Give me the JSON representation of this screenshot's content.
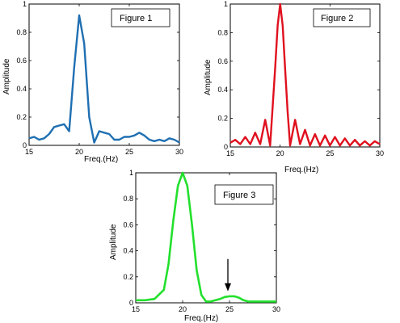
{
  "chart_data": [
    {
      "type": "line",
      "title": "",
      "annotation": "Figure 1",
      "xlabel": "Freq.(Hz)",
      "ylabel": "Amplitude",
      "xlim": [
        15,
        30
      ],
      "ylim": [
        0,
        1
      ],
      "xticks": [
        "15",
        "20",
        "25",
        "30"
      ],
      "yticks": [
        "0",
        "0.2",
        "0.4",
        "0.6",
        "0.8",
        "1"
      ],
      "color": "#1f6fb2",
      "series": [
        {
          "x": [
            15,
            15.5,
            16,
            16.5,
            17,
            17.5,
            18,
            18.5,
            19,
            19.5,
            20,
            20.5,
            21,
            21.5,
            22,
            22.5,
            23,
            23.5,
            24,
            24.5,
            25,
            25.5,
            26,
            26.5,
            27,
            27.5,
            28,
            28.5,
            29,
            29.5,
            30
          ],
          "y": [
            0.05,
            0.06,
            0.04,
            0.05,
            0.08,
            0.13,
            0.14,
            0.15,
            0.1,
            0.55,
            0.92,
            0.72,
            0.2,
            0.02,
            0.1,
            0.09,
            0.08,
            0.04,
            0.04,
            0.06,
            0.06,
            0.07,
            0.09,
            0.07,
            0.04,
            0.03,
            0.04,
            0.03,
            0.05,
            0.04,
            0.02
          ]
        }
      ]
    },
    {
      "type": "line",
      "title": "",
      "annotation": "Figure 2",
      "xlabel": "Freq.(Hz)",
      "ylabel": "Amplitude",
      "xlim": [
        15,
        30
      ],
      "ylim": [
        0,
        1
      ],
      "xticks": [
        "15",
        "20",
        "25",
        "30"
      ],
      "yticks": [
        "0",
        "0.2",
        "0.4",
        "0.6",
        "0.8",
        "1"
      ],
      "color": "#e0101e",
      "series": [
        {
          "x": [
            15,
            15.5,
            16,
            16.5,
            17,
            17.5,
            18,
            18.5,
            19,
            19.5,
            19.75,
            20,
            20.25,
            20.5,
            20.75,
            21,
            21.5,
            22,
            22.5,
            23,
            23.5,
            24,
            24.5,
            25,
            25.5,
            26,
            26.5,
            27,
            27.5,
            28,
            28.5,
            29,
            29.5,
            30
          ],
          "y": [
            0.03,
            0.05,
            0.02,
            0.07,
            0.02,
            0.1,
            0.02,
            0.19,
            0.01,
            0.55,
            0.85,
            1.0,
            0.85,
            0.55,
            0.25,
            0.01,
            0.19,
            0.02,
            0.12,
            0.01,
            0.09,
            0.01,
            0.08,
            0.01,
            0.07,
            0.01,
            0.06,
            0.01,
            0.05,
            0.01,
            0.04,
            0.01,
            0.04,
            0.02
          ]
        }
      ]
    },
    {
      "type": "line",
      "title": "",
      "annotation": "Figure 3",
      "xlabel": "Freq.(Hz)",
      "ylabel": "Amplitude",
      "xlim": [
        15,
        30
      ],
      "ylim": [
        0,
        1
      ],
      "xticks": [
        "15",
        "20",
        "25",
        "30"
      ],
      "yticks": [
        "0",
        "0.2",
        "0.4",
        "0.6",
        "0.8",
        "1"
      ],
      "color": "#22e02c",
      "arrow_at": [
        25,
        0.07
      ],
      "series": [
        {
          "x": [
            15,
            16,
            17,
            18,
            18.5,
            19,
            19.5,
            20,
            20.5,
            21,
            21.5,
            22,
            22.5,
            23,
            23.5,
            24,
            24.5,
            25,
            25.5,
            26,
            26.5,
            27,
            28,
            29,
            30
          ],
          "y": [
            0.02,
            0.02,
            0.03,
            0.1,
            0.3,
            0.63,
            0.9,
            1.0,
            0.9,
            0.6,
            0.25,
            0.06,
            0.01,
            0.01,
            0.02,
            0.03,
            0.045,
            0.05,
            0.05,
            0.04,
            0.02,
            0.01,
            0.01,
            0.01,
            0.01
          ]
        }
      ]
    }
  ]
}
